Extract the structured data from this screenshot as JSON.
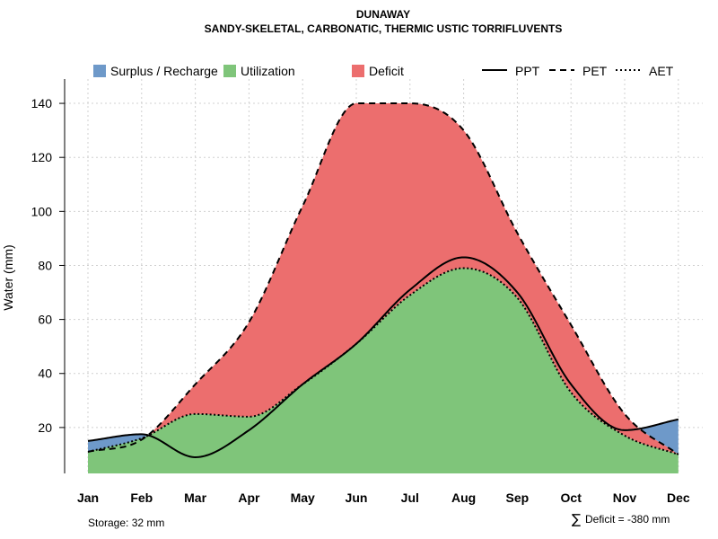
{
  "chart_data": {
    "type": "area",
    "title": "DUNAWAY",
    "subtitle": "SANDY-SKELETAL, CARBONATIC, THERMIC USTIC TORRIFLUVENTS",
    "xlabel": "",
    "ylabel": "Water (mm)",
    "categories": [
      "Jan",
      "Feb",
      "Mar",
      "Apr",
      "May",
      "Jun",
      "Jul",
      "Aug",
      "Sep",
      "Oct",
      "Nov",
      "Dec"
    ],
    "ylim": [
      3,
      149
    ],
    "yticks": [
      20,
      40,
      60,
      80,
      100,
      120,
      140
    ],
    "grid": true,
    "series": [
      {
        "name": "PPT",
        "style": "solid",
        "values": [
          15,
          17.5,
          9,
          19,
          36,
          51,
          71,
          83,
          70,
          36,
          19,
          23
        ]
      },
      {
        "name": "PET",
        "style": "dashed",
        "values": [
          11,
          15.5,
          36,
          59,
          102,
          140,
          140,
          130,
          92,
          58,
          25,
          10
        ]
      },
      {
        "name": "AET",
        "style": "dotted",
        "values": [
          11,
          16,
          25,
          24,
          36,
          51,
          69,
          79,
          68,
          33,
          17,
          10
        ]
      }
    ],
    "legend": [
      {
        "label": "Surplus / Recharge",
        "kind": "box",
        "color": "#6e99c9"
      },
      {
        "label": "Utilization",
        "kind": "box",
        "color": "#7fc57a"
      },
      {
        "label": "Deficit",
        "kind": "box",
        "color": "#ec6e6e"
      },
      {
        "label": "PPT",
        "kind": "line",
        "dash": "solid"
      },
      {
        "label": "PET",
        "kind": "line",
        "dash": "dashed"
      },
      {
        "label": "AET",
        "kind": "line",
        "dash": "dotted"
      }
    ],
    "legend_position": "top",
    "annotations": {
      "storage": "Storage: 32 mm",
      "deficit_symbol": "∑",
      "deficit": "Deficit = -380 mm"
    },
    "colors": {
      "surplus": "#6e99c9",
      "utilization": "#7fc57a",
      "deficit": "#ec6e6e"
    }
  }
}
